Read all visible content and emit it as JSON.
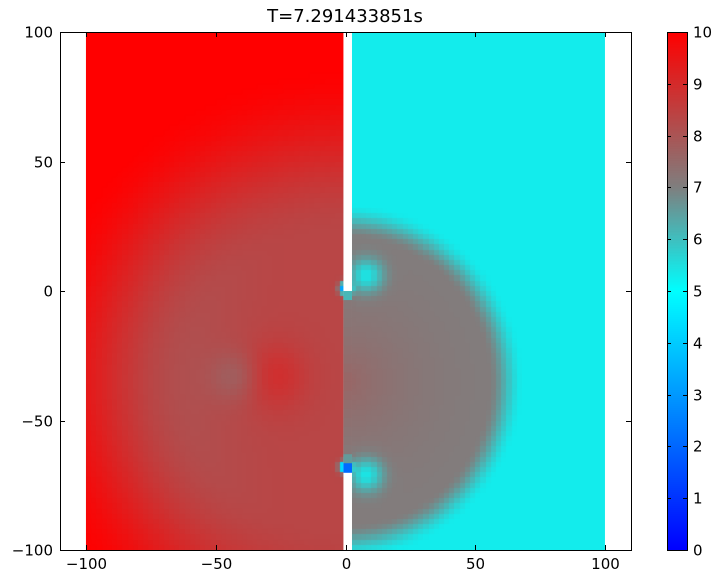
{
  "chart_data": {
    "type": "heatmap",
    "title": "T=7.291433851s",
    "xlabel": "",
    "ylabel": "",
    "xlim": [
      -110,
      110
    ],
    "ylim": [
      -100,
      100
    ],
    "xticks": [
      -100,
      -50,
      0,
      50,
      100
    ],
    "xtick_labels": [
      "−100",
      "−50",
      "0",
      "50",
      "100"
    ],
    "yticks": [
      -100,
      -50,
      0,
      50,
      100
    ],
    "ytick_labels": [
      "−100",
      "−50",
      "0",
      "50",
      "100"
    ],
    "colormap": {
      "vmin": 0,
      "vmax": 10,
      "ticks": [
        0,
        1,
        2,
        3,
        4,
        5,
        6,
        7,
        8,
        9,
        10
      ],
      "tick_labels": [
        "0",
        "1",
        "2",
        "3",
        "4",
        "5",
        "6",
        "7",
        "8",
        "9",
        "10"
      ],
      "stops": [
        {
          "value": 0,
          "color": "#0000ff"
        },
        {
          "value": 5,
          "color": "#00ffff"
        },
        {
          "value": 7,
          "color": "#7f7f7f"
        },
        {
          "value": 10,
          "color": "#ff0000"
        }
      ]
    },
    "field": {
      "domain_x": [
        -100,
        100
      ],
      "domain_y": [
        -100,
        100
      ],
      "left_state_value": 10,
      "right_state_value": 5.3,
      "wall": {
        "x_range": [
          -0.8,
          2.5
        ],
        "openings_y": [
          [
            -70,
            0
          ]
        ]
      },
      "wave_front_radius": 67,
      "center": [
        0,
        -35
      ],
      "interior_value": 7.0,
      "left_high_blob": {
        "center": [
          -28,
          -33
        ],
        "value": 8.6
      },
      "left_low_blob": {
        "center": [
          -42,
          -33
        ],
        "value": 7.6
      },
      "vortices": [
        {
          "center": [
            8,
            6
          ],
          "value": 5.4
        },
        {
          "center": [
            8,
            -71
          ],
          "value": 5.4
        }
      ],
      "edge_dips": [
        {
          "center": [
            0,
            1
          ],
          "value": 2.0
        },
        {
          "center": [
            0,
            -68
          ],
          "value": 2.0
        }
      ]
    },
    "grid": false,
    "legend": "none",
    "colors": {
      "axes": "#000000",
      "background": "#ffffff"
    }
  }
}
